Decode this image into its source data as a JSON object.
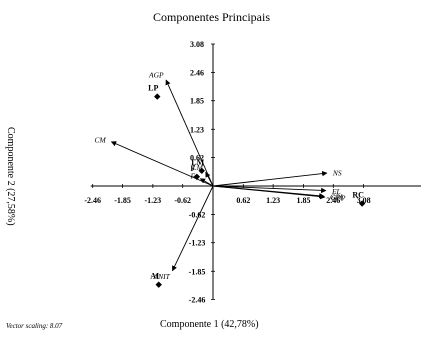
{
  "chart_data": {
    "type": "scatter",
    "title": "Componentes Principais",
    "xlabel": "Componente 1 (42,78%)",
    "ylabel": "Componente 2 (27,58%)",
    "footnote": "Vector scaling: 8.07",
    "xlim": [
      -2.46,
      3.08
    ],
    "ylim": [
      -2.46,
      3.08
    ],
    "x_ticks": [
      "-2.46",
      "-1.85",
      "-1.23",
      "-0.62",
      "0.62",
      "1.23",
      "1.85",
      "2.46",
      "3.08"
    ],
    "y_ticks": [
      "3.08",
      "2.46",
      "1.85",
      "1.23",
      "0.62",
      "-0.62",
      "-1.23",
      "-1.85",
      "-2.46"
    ],
    "points": [
      {
        "label": "LP",
        "x": -1.14,
        "y": 1.94
      },
      {
        "label": "AI",
        "x": -1.11,
        "y": -2.14
      },
      {
        "label": "RC",
        "x": 3.05,
        "y": -0.38
      },
      {
        "label": "LM",
        "x": -0.23,
        "y": 0.33
      },
      {
        "label": "F",
        "x": -0.33,
        "y": 0.2
      }
    ],
    "vectors": [
      {
        "label": "AGP",
        "x": -0.96,
        "y": 2.3
      },
      {
        "label": "CM",
        "x": -2.08,
        "y": 0.96
      },
      {
        "label": "NS",
        "x": 2.33,
        "y": 0.28
      },
      {
        "label": "EL",
        "x": 2.31,
        "y": -0.1
      },
      {
        "label": "GPP",
        "x": 2.29,
        "y": -0.24
      },
      {
        "label": "GPL",
        "x": 2.27,
        "y": -0.22
      },
      {
        "label": "ANIT",
        "x": -0.83,
        "y": -1.84
      },
      {
        "label": "LM",
        "x": -0.15,
        "y": 0.3
      },
      {
        "label": "F",
        "x": -0.26,
        "y": 0.16
      }
    ]
  }
}
